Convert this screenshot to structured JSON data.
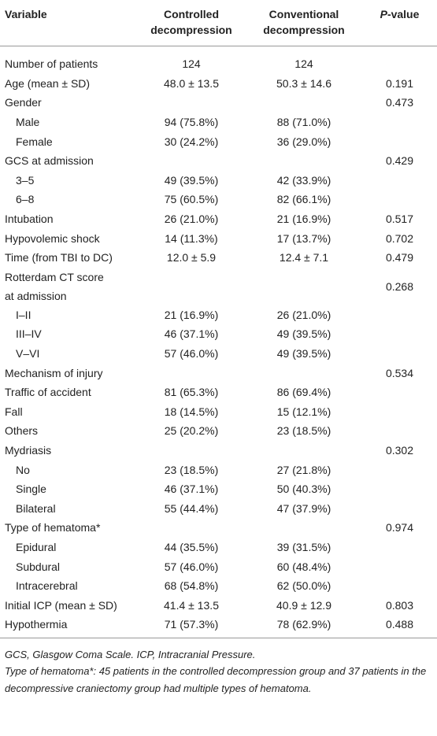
{
  "table": {
    "header": [
      "Variable",
      "Controlled decompression",
      "Conventional decompression",
      "P-value"
    ],
    "rows": [
      {
        "cells": [
          "Number of patients",
          "124",
          "124",
          null
        ]
      },
      {
        "cells": [
          "Age (mean ± SD)",
          "48.0 ± 13.5",
          "50.3 ± 14.6",
          "0.191"
        ]
      },
      {
        "cells": [
          "Gender",
          null,
          null,
          "0.473"
        ],
        "sub": [
          [
            "Male",
            "94 (75.8%)",
            "88 (71.0%)",
            null
          ],
          [
            "Female",
            "30 (24.2%)",
            "36 (29.0%)",
            null
          ]
        ]
      },
      {
        "cells": [
          "GCS at admission",
          null,
          null,
          "0.429"
        ],
        "sub": [
          [
            "3–5",
            "49 (39.5%)",
            "42 (33.9%)",
            null
          ],
          [
            "6–8",
            "75 (60.5%)",
            "82 (66.1%)",
            null
          ]
        ]
      },
      {
        "cells": [
          "Intubation",
          "26 (21.0%)",
          "21 (16.9%)",
          "0.517"
        ]
      },
      {
        "cells": [
          "Hypovolemic shock",
          "14 (11.3%)",
          "17 (13.7%)",
          "0.702"
        ]
      },
      {
        "cells": [
          "Time (from TBI to DC)",
          "12.0 ± 5.9",
          "12.4 ± 7.1",
          "0.479"
        ]
      },
      {
        "cells": [
          "Rotterdam CT score at admission",
          null,
          null,
          "0.268"
        ],
        "sub": [
          [
            "I–II",
            "21 (16.9%)",
            "26 (21.0%)",
            null
          ],
          [
            "III–IV",
            "46 (37.1%)",
            "49 (39.5%)",
            null
          ],
          [
            "V–VI",
            "57 (46.0%)",
            "49 (39.5%)",
            null
          ]
        ]
      },
      {
        "cells": [
          "Mechanism of injury",
          null,
          null,
          "0.534"
        ]
      },
      {
        "cells": [
          "Traffic of accident",
          "81 (65.3%)",
          "86 (69.4%)",
          null
        ]
      },
      {
        "cells": [
          "Fall",
          "18 (14.5%)",
          "15 (12.1%)",
          null
        ]
      },
      {
        "cells": [
          "Others",
          "25 (20.2%)",
          "23 (18.5%)",
          null
        ]
      },
      {
        "cells": [
          "Mydriasis",
          null,
          null,
          "0.302"
        ],
        "sub": [
          [
            "No",
            "23 (18.5%)",
            "27 (21.8%)",
            null
          ],
          [
            "Single",
            "46 (37.1%)",
            "50 (40.3%)",
            null
          ],
          [
            "Bilateral",
            "55 (44.4%)",
            "47 (37.9%)",
            null
          ]
        ]
      },
      {
        "cells": [
          "Type of hematoma*",
          null,
          null,
          "0.974"
        ],
        "sub": [
          [
            "Epidural",
            "44 (35.5%)",
            "39 (31.5%)",
            null
          ],
          [
            "Subdural",
            "57 (46.0%)",
            "60 (48.4%)",
            null
          ],
          [
            "Intracerebral",
            "68 (54.8%)",
            "62 (50.0%)",
            null
          ]
        ]
      },
      {
        "cells": [
          "Initial ICP (mean ± SD)",
          "41.4 ± 13.5",
          "40.9 ± 12.9",
          "0.803"
        ]
      },
      {
        "cells": [
          "Hypothermia",
          "71 (57.3%)",
          "78 (62.9%)",
          "0.488"
        ]
      }
    ]
  },
  "notes": [
    "GCS, Glasgow Coma Scale. ICP, Intracranial Pressure.",
    "Type of hematoma*: 45 patients in the controlled decompression group and 37 patients in the decompressive craniectomy group had multiple types of hematoma."
  ]
}
